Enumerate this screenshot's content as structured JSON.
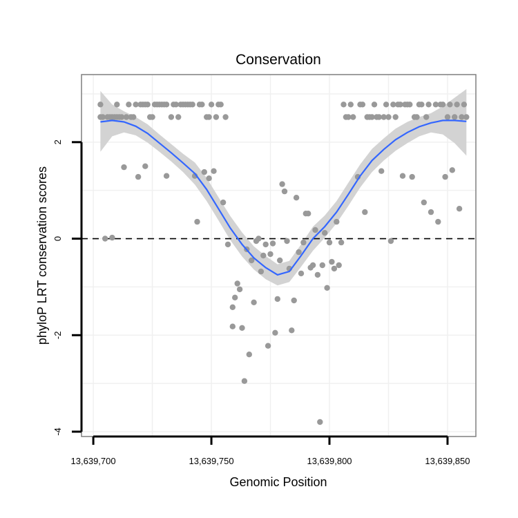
{
  "chart_data": {
    "type": "scatter",
    "title": "Conservation",
    "xlabel": "Genomic Position",
    "ylabel": "phyloP LRT conservation scores",
    "xlim": [
      13639695,
      13639862
    ],
    "ylim": [
      -4.1,
      3.4
    ],
    "x_ticks": [
      13639700,
      13639750,
      13639800,
      13639850
    ],
    "x_tick_labels": [
      "13,639,700",
      "13,639,750",
      "13,639,800",
      "13,639,850"
    ],
    "y_ticks": [
      -4,
      -2,
      0,
      2
    ],
    "y_tick_labels": [
      "-4",
      "-2",
      "0",
      "2"
    ],
    "grid": true,
    "reference_line": {
      "y": 0,
      "style": "dashed"
    },
    "colors": {
      "points": "#999999",
      "smooth_line": "#3366ff",
      "confidence_band": "#d3d3d3",
      "panel_border": "#7f7f7f",
      "grid": "#f0f0f0"
    },
    "points": [
      [
        13639703,
        2.78
      ],
      [
        13639703,
        2.52
      ],
      [
        13639704,
        2.52
      ],
      [
        13639705,
        0.0
      ],
      [
        13639706,
        2.52
      ],
      [
        13639707,
        2.52
      ],
      [
        13639708,
        0.02
      ],
      [
        13639708,
        2.52
      ],
      [
        13639709,
        2.52
      ],
      [
        13639710,
        2.78
      ],
      [
        13639710,
        2.52
      ],
      [
        13639711,
        2.52
      ],
      [
        13639712,
        2.52
      ],
      [
        13639713,
        1.48
      ],
      [
        13639714,
        2.52
      ],
      [
        13639715,
        2.78
      ],
      [
        13639716,
        2.52
      ],
      [
        13639717,
        2.52
      ],
      [
        13639718,
        2.78
      ],
      [
        13639719,
        1.28
      ],
      [
        13639720,
        2.78
      ],
      [
        13639721,
        2.78
      ],
      [
        13639722,
        1.5
      ],
      [
        13639722,
        2.78
      ],
      [
        13639723,
        2.78
      ],
      [
        13639724,
        2.52
      ],
      [
        13639725,
        2.52
      ],
      [
        13639726,
        2.78
      ],
      [
        13639727,
        2.78
      ],
      [
        13639728,
        2.78
      ],
      [
        13639729,
        2.78
      ],
      [
        13639730,
        2.78
      ],
      [
        13639731,
        1.3
      ],
      [
        13639731,
        2.78
      ],
      [
        13639733,
        2.52
      ],
      [
        13639734,
        2.78
      ],
      [
        13639735,
        2.78
      ],
      [
        13639736,
        2.52
      ],
      [
        13639737,
        2.78
      ],
      [
        13639738,
        2.78
      ],
      [
        13639739,
        2.78
      ],
      [
        13639740,
        2.78
      ],
      [
        13639741,
        2.78
      ],
      [
        13639742,
        2.78
      ],
      [
        13639743,
        1.3
      ],
      [
        13639744,
        0.35
      ],
      [
        13639745,
        2.78
      ],
      [
        13639746,
        2.78
      ],
      [
        13639747,
        1.38
      ],
      [
        13639748,
        2.52
      ],
      [
        13639749,
        2.52
      ],
      [
        13639749,
        1.25
      ],
      [
        13639750,
        2.78
      ],
      [
        13639751,
        1.4
      ],
      [
        13639752,
        2.52
      ],
      [
        13639753,
        2.78
      ],
      [
        13639754,
        2.78
      ],
      [
        13639755,
        0.75
      ],
      [
        13639756,
        2.52
      ],
      [
        13639757,
        -0.12
      ],
      [
        13639759,
        -1.82
      ],
      [
        13639759,
        -1.42
      ],
      [
        13639760,
        -1.22
      ],
      [
        13639761,
        -0.93
      ],
      [
        13639762,
        -1.05
      ],
      [
        13639763,
        -1.85
      ],
      [
        13639764,
        -2.95
      ],
      [
        13639765,
        -0.22
      ],
      [
        13639766,
        -2.4
      ],
      [
        13639767,
        -0.45
      ],
      [
        13639768,
        -1.32
      ],
      [
        13639769,
        -0.05
      ],
      [
        13639770,
        0.0
      ],
      [
        13639771,
        -0.68
      ],
      [
        13639772,
        -0.35
      ],
      [
        13639773,
        -0.12
      ],
      [
        13639774,
        -2.22
      ],
      [
        13639775,
        -0.32
      ],
      [
        13639776,
        -0.1
      ],
      [
        13639777,
        -1.95
      ],
      [
        13639778,
        -1.25
      ],
      [
        13639779,
        -0.45
      ],
      [
        13639780,
        1.13
      ],
      [
        13639781,
        0.98
      ],
      [
        13639782,
        -0.05
      ],
      [
        13639783,
        -0.62
      ],
      [
        13639784,
        -1.9
      ],
      [
        13639785,
        -1.28
      ],
      [
        13639786,
        0.85
      ],
      [
        13639787,
        -0.28
      ],
      [
        13639788,
        -0.72
      ],
      [
        13639789,
        -0.08
      ],
      [
        13639790,
        0.52
      ],
      [
        13639791,
        0.52
      ],
      [
        13639792,
        -0.6
      ],
      [
        13639793,
        -0.55
      ],
      [
        13639794,
        0.18
      ],
      [
        13639795,
        -0.75
      ],
      [
        13639796,
        -3.8
      ],
      [
        13639797,
        -0.55
      ],
      [
        13639798,
        0.12
      ],
      [
        13639799,
        -1.02
      ],
      [
        13639800,
        -0.08
      ],
      [
        13639801,
        -0.48
      ],
      [
        13639802,
        -0.62
      ],
      [
        13639803,
        0.35
      ],
      [
        13639804,
        -0.55
      ],
      [
        13639805,
        -0.08
      ],
      [
        13639806,
        2.78
      ],
      [
        13639807,
        2.52
      ],
      [
        13639808,
        2.52
      ],
      [
        13639809,
        2.78
      ],
      [
        13639810,
        2.52
      ],
      [
        13639812,
        1.28
      ],
      [
        13639813,
        2.78
      ],
      [
        13639814,
        2.78
      ],
      [
        13639815,
        0.55
      ],
      [
        13639816,
        2.52
      ],
      [
        13639817,
        2.52
      ],
      [
        13639818,
        2.52
      ],
      [
        13639819,
        2.78
      ],
      [
        13639820,
        2.52
      ],
      [
        13639821,
        2.52
      ],
      [
        13639822,
        1.4
      ],
      [
        13639823,
        2.52
      ],
      [
        13639824,
        2.78
      ],
      [
        13639825,
        2.52
      ],
      [
        13639826,
        -0.05
      ],
      [
        13639827,
        2.78
      ],
      [
        13639828,
        2.52
      ],
      [
        13639829,
        2.78
      ],
      [
        13639830,
        2.78
      ],
      [
        13639831,
        1.3
      ],
      [
        13639832,
        2.78
      ],
      [
        13639833,
        2.78
      ],
      [
        13639834,
        2.78
      ],
      [
        13639835,
        1.28
      ],
      [
        13639836,
        2.52
      ],
      [
        13639837,
        2.52
      ],
      [
        13639838,
        2.78
      ],
      [
        13639839,
        2.78
      ],
      [
        13639840,
        0.75
      ],
      [
        13639841,
        2.52
      ],
      [
        13639842,
        2.78
      ],
      [
        13639843,
        0.55
      ],
      [
        13639845,
        2.78
      ],
      [
        13639846,
        0.35
      ],
      [
        13639847,
        2.78
      ],
      [
        13639848,
        2.78
      ],
      [
        13639849,
        1.28
      ],
      [
        13639850,
        2.52
      ],
      [
        13639851,
        2.78
      ],
      [
        13639852,
        1.42
      ],
      [
        13639853,
        2.52
      ],
      [
        13639854,
        2.78
      ],
      [
        13639855,
        0.62
      ],
      [
        13639856,
        2.52
      ],
      [
        13639857,
        2.78
      ],
      [
        13639858,
        2.52
      ]
    ],
    "smooth": {
      "x": [
        13639703,
        13639708,
        13639713,
        13639718,
        13639723,
        13639728,
        13639733,
        13639738,
        13639743,
        13639748,
        13639753,
        13639758,
        13639763,
        13639768,
        13639773,
        13639778,
        13639783,
        13639788,
        13639793,
        13639798,
        13639803,
        13639808,
        13639813,
        13639818,
        13639823,
        13639828,
        13639833,
        13639838,
        13639843,
        13639848,
        13639853,
        13639858
      ],
      "y": [
        2.42,
        2.45,
        2.42,
        2.33,
        2.18,
        1.98,
        1.78,
        1.57,
        1.35,
        1.02,
        0.62,
        0.22,
        -0.12,
        -0.4,
        -0.6,
        -0.75,
        -0.68,
        -0.35,
        0.0,
        0.25,
        0.55,
        0.92,
        1.3,
        1.62,
        1.85,
        2.05,
        2.2,
        2.32,
        2.4,
        2.45,
        2.45,
        2.43
      ],
      "lower": [
        1.8,
        2.12,
        2.2,
        2.14,
        1.99,
        1.8,
        1.6,
        1.38,
        1.12,
        0.78,
        0.38,
        -0.03,
        -0.37,
        -0.64,
        -0.84,
        -0.97,
        -0.9,
        -0.58,
        -0.25,
        0.02,
        0.32,
        0.68,
        1.06,
        1.38,
        1.62,
        1.82,
        1.98,
        2.12,
        2.2,
        2.16,
        1.98,
        1.72
      ],
      "upper": [
        3.06,
        2.78,
        2.64,
        2.52,
        2.37,
        2.16,
        1.96,
        1.76,
        1.58,
        1.26,
        0.86,
        0.47,
        0.13,
        -0.16,
        -0.36,
        -0.53,
        -0.46,
        -0.12,
        0.25,
        0.48,
        0.78,
        1.16,
        1.54,
        1.86,
        2.08,
        2.28,
        2.42,
        2.52,
        2.6,
        2.74,
        2.92,
        3.1
      ]
    }
  }
}
